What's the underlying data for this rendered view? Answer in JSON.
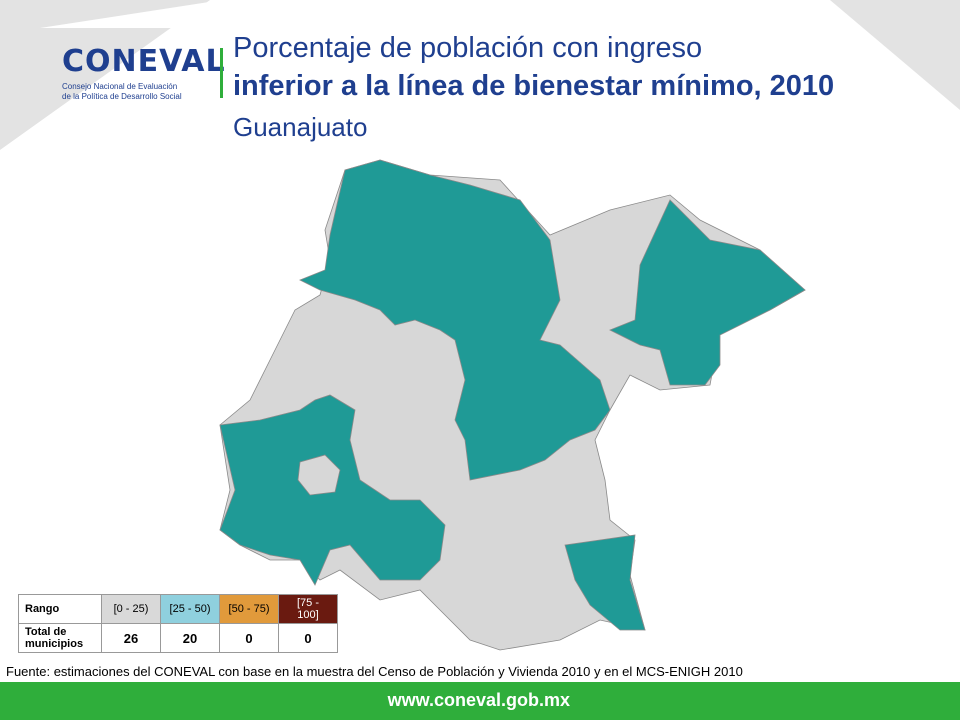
{
  "header": {
    "logo": "CONEVAL",
    "logo_subtitle_lines": [
      "Consejo Nacional de Evaluación",
      "de la Política de Desarrollo Social"
    ],
    "title_lines": [
      "Porcentaje de población con ingreso",
      "inferior a la línea de bienestar mínimo, 2010"
    ],
    "subtitle": "Guanajuato"
  },
  "legend_table": {
    "row_headers": [
      "Rango",
      "Total de municipios"
    ],
    "ranges": [
      "[0 - 25)",
      "[25 - 50)",
      "[50 - 75)",
      "[75 - 100]"
    ],
    "colors": [
      "#d9d9d9",
      "#8fd0de",
      "#e19a3b",
      "#6a1a10"
    ],
    "counts": [
      26,
      20,
      0,
      0
    ]
  },
  "source": "Fuente: estimaciones del CONEVAL con base en la muestra del Censo de Población y Vivienda 2010 y en el MCS-ENIGH 2010",
  "footer": {
    "url": "www.coneval.gob.mx"
  }
}
